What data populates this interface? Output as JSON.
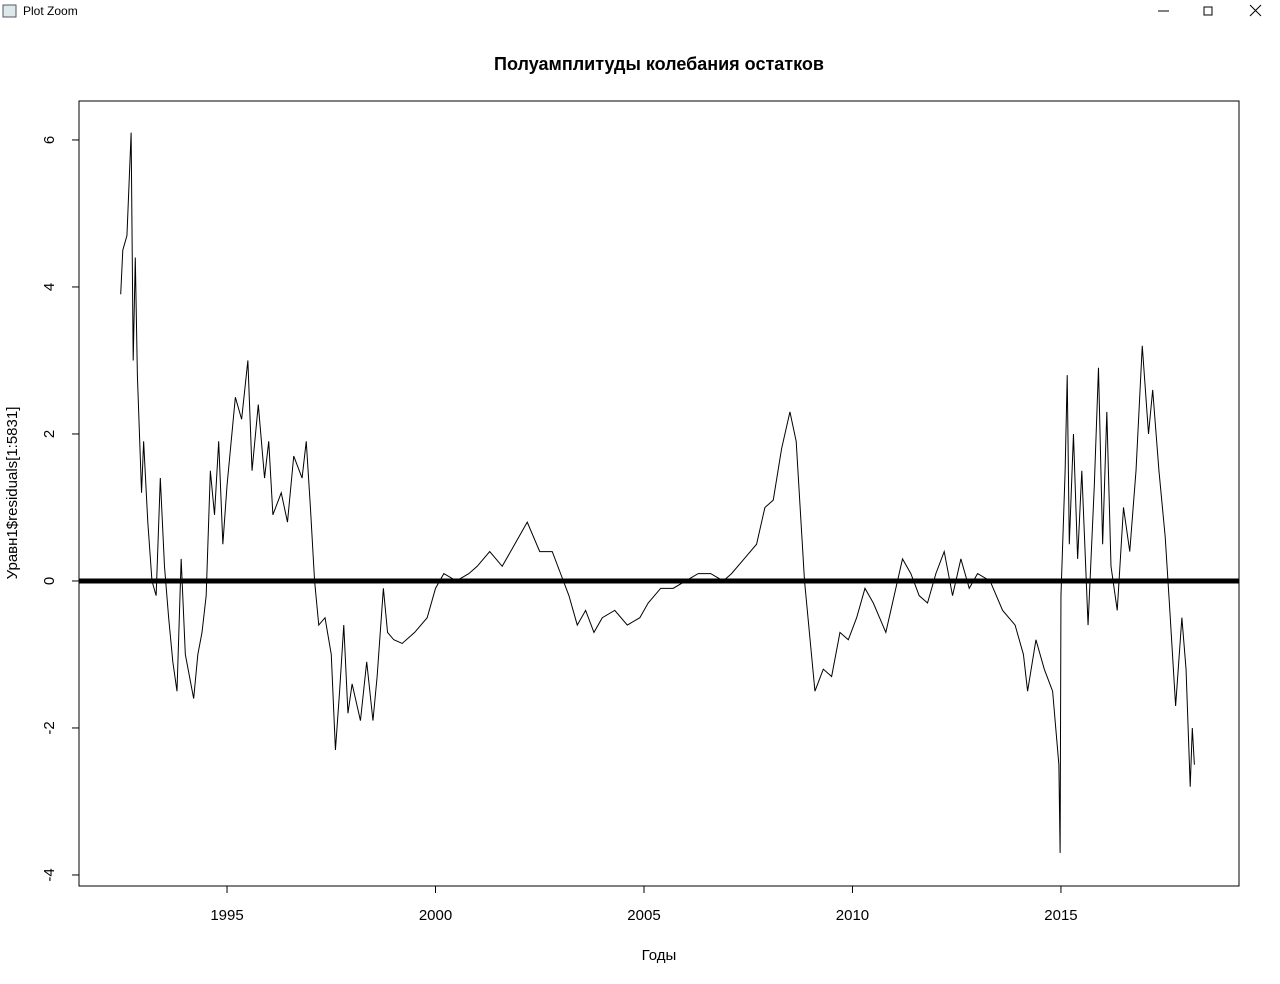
{
  "window": {
    "title": "Plot Zoom"
  },
  "chart_data": {
    "type": "line",
    "title": "Полуамплитуды колебания остатков",
    "x_label": "Годы",
    "y_label": "Уравн1$residuals[1:5831]",
    "xlim": [
      1991.45,
      2019.27
    ],
    "ylim": [
      -4.15,
      6.53
    ],
    "xticks": [
      1995,
      2000,
      2005,
      2010,
      2015
    ],
    "yticks": [
      -4,
      -2,
      0,
      2,
      4,
      6
    ],
    "reference_line": 0,
    "series": [
      {
        "color": "#000000",
        "x": [
          1992.45,
          1992.5,
          1992.6,
          1992.7,
          1992.75,
          1992.8,
          1992.85,
          1992.95,
          1993.0,
          1993.1,
          1993.2,
          1993.3,
          1993.4,
          1993.5,
          1993.6,
          1993.7,
          1993.8,
          1993.9,
          1994.0,
          1994.1,
          1994.2,
          1994.3,
          1994.4,
          1994.5,
          1994.6,
          1994.7,
          1994.8,
          1994.9,
          1995.0,
          1995.2,
          1995.35,
          1995.5,
          1995.6,
          1995.75,
          1995.9,
          1996.0,
          1996.1,
          1996.3,
          1996.45,
          1996.6,
          1996.8,
          1996.9,
          1997.0,
          1997.1,
          1997.2,
          1997.35,
          1997.5,
          1997.6,
          1997.7,
          1997.8,
          1997.9,
          1998.0,
          1998.2,
          1998.35,
          1998.5,
          1998.6,
          1998.75,
          1998.85,
          1999.0,
          1999.2,
          1999.5,
          1999.8,
          2000.0,
          2000.2,
          2000.5,
          2000.8,
          2001.0,
          2001.3,
          2001.6,
          2001.9,
          2002.2,
          2002.5,
          2002.8,
          2003.0,
          2003.2,
          2003.4,
          2003.6,
          2003.8,
          2004.0,
          2004.3,
          2004.6,
          2004.9,
          2005.1,
          2005.4,
          2005.7,
          2006.0,
          2006.3,
          2006.6,
          2006.9,
          2007.1,
          2007.4,
          2007.7,
          2007.9,
          2008.1,
          2008.3,
          2008.5,
          2008.65,
          2008.85,
          2009.0,
          2009.1,
          2009.3,
          2009.5,
          2009.7,
          2009.9,
          2010.1,
          2010.3,
          2010.5,
          2010.8,
          2011.0,
          2011.2,
          2011.4,
          2011.6,
          2011.8,
          2012.0,
          2012.2,
          2012.4,
          2012.6,
          2012.8,
          2013.0,
          2013.3,
          2013.6,
          2013.9,
          2014.1,
          2014.2,
          2014.4,
          2014.6,
          2014.8,
          2014.95,
          2014.98,
          2015.0,
          2015.1,
          2015.15,
          2015.2,
          2015.3,
          2015.4,
          2015.5,
          2015.65,
          2015.8,
          2015.9,
          2016.0,
          2016.1,
          2016.2,
          2016.35,
          2016.5,
          2016.65,
          2016.8,
          2016.95,
          2017.1,
          2017.2,
          2017.35,
          2017.5,
          2017.6,
          2017.75,
          2017.9,
          2018.0,
          2018.1,
          2018.15,
          2018.2
        ],
        "values": [
          3.9,
          4.5,
          4.7,
          6.1,
          3.0,
          4.4,
          2.8,
          1.2,
          1.9,
          0.8,
          0.0,
          -0.2,
          1.4,
          0.2,
          -0.5,
          -1.1,
          -1.5,
          0.3,
          -1.0,
          -1.3,
          -1.6,
          -1.0,
          -0.7,
          -0.2,
          1.5,
          0.9,
          1.9,
          0.5,
          1.3,
          2.5,
          2.2,
          3.0,
          1.5,
          2.4,
          1.4,
          1.9,
          0.9,
          1.2,
          0.8,
          1.7,
          1.4,
          1.9,
          1.0,
          0.0,
          -0.6,
          -0.5,
          -1.0,
          -2.3,
          -1.5,
          -0.6,
          -1.8,
          -1.4,
          -1.9,
          -1.1,
          -1.9,
          -1.3,
          -0.1,
          -0.7,
          -0.8,
          -0.85,
          -0.7,
          -0.5,
          -0.1,
          0.1,
          0.0,
          0.1,
          0.2,
          0.4,
          0.2,
          0.5,
          0.8,
          0.4,
          0.4,
          0.1,
          -0.2,
          -0.6,
          -0.4,
          -0.7,
          -0.5,
          -0.4,
          -0.6,
          -0.5,
          -0.3,
          -0.1,
          -0.1,
          0.0,
          0.1,
          0.1,
          0.0,
          0.1,
          0.3,
          0.5,
          1.0,
          1.1,
          1.8,
          2.3,
          1.9,
          0.0,
          -0.9,
          -1.5,
          -1.2,
          -1.3,
          -0.7,
          -0.8,
          -0.5,
          -0.1,
          -0.3,
          -0.7,
          -0.2,
          0.3,
          0.1,
          -0.2,
          -0.3,
          0.1,
          0.4,
          -0.2,
          0.3,
          -0.1,
          0.1,
          0.0,
          -0.4,
          -0.6,
          -1.0,
          -1.5,
          -0.8,
          -1.2,
          -1.5,
          -2.5,
          -3.7,
          -0.2,
          1.5,
          2.8,
          0.5,
          2.0,
          0.3,
          1.5,
          -0.6,
          1.3,
          2.9,
          0.5,
          2.3,
          0.2,
          -0.4,
          1.0,
          0.4,
          1.5,
          3.2,
          2.0,
          2.6,
          1.5,
          0.6,
          -0.3,
          -1.7,
          -0.5,
          -1.2,
          -2.8,
          -2.0,
          -2.5
        ]
      }
    ]
  }
}
